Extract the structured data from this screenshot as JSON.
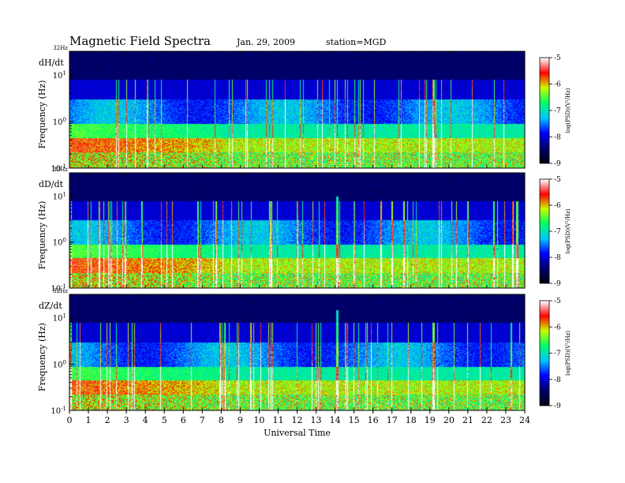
{
  "header": {
    "title": "Magnetic  Field  Spectra",
    "date": "Jan. 29, 2009",
    "station": "station=MGD"
  },
  "chart_data": {
    "type": "heatmap",
    "xlabel": "Universal Time",
    "x_ticks": [
      "0",
      "1",
      "2",
      "3",
      "4",
      "5",
      "6",
      "7",
      "8",
      "9",
      "10",
      "11",
      "12",
      "13",
      "14",
      "15",
      "16",
      "17",
      "18",
      "19",
      "20",
      "21",
      "22",
      "23",
      "24"
    ],
    "xlim": [
      0,
      24
    ],
    "ylabel": "Frequency  (Hz)",
    "y_scale": "log",
    "ylim": [
      0.1,
      32
    ],
    "y_ticks": [
      {
        "value": 0.1,
        "base": "10",
        "exp": "-1"
      },
      {
        "value": 1,
        "base": "10",
        "exp": "0"
      },
      {
        "value": 10,
        "base": "10",
        "exp": "1"
      }
    ],
    "y_top_label": "32Hz",
    "colorbar": {
      "label": "log(PSD)(V²/Hz)",
      "range": [
        -9,
        -5
      ],
      "ticks": [
        "-5",
        "-6",
        "-7",
        "-8",
        "-9"
      ],
      "colors": [
        "#000010",
        "#000070",
        "#0000ff",
        "#00c8ff",
        "#00ff64",
        "#c8ff00",
        "#ff0000",
        "#ffffff"
      ]
    },
    "panels": [
      {
        "name": "dH/dt",
        "events": [],
        "early_band_intensity": 0.95
      },
      {
        "name": "dD/dt",
        "events": [
          {
            "ut": 14.1,
            "freq_top": 10
          }
        ],
        "early_band_intensity": 1.0
      },
      {
        "name": "dZ/dt",
        "events": [
          {
            "ut": 14.1,
            "freq_top": 15
          }
        ],
        "early_band_intensity": 0.9
      }
    ]
  }
}
